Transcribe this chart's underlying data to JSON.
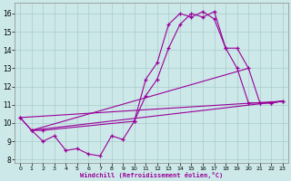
{
  "xlabel": "Windchill (Refroidissement éolien,°C)",
  "background_color": "#cce8e8",
  "grid_color": "#aacccc",
  "line_color": "#990099",
  "xlim": [
    -0.5,
    23.5
  ],
  "ylim": [
    7.8,
    16.6
  ],
  "xticks": [
    0,
    1,
    2,
    3,
    4,
    5,
    6,
    7,
    8,
    9,
    10,
    11,
    12,
    13,
    14,
    15,
    16,
    17,
    18,
    19,
    20,
    21,
    22,
    23
  ],
  "yticks": [
    8,
    9,
    10,
    11,
    12,
    13,
    14,
    15,
    16
  ],
  "line1_x": [
    0,
    1,
    2,
    3,
    4,
    5,
    6,
    7,
    8,
    9,
    10,
    11,
    12,
    13,
    14,
    15,
    16,
    17,
    18,
    19,
    20,
    21,
    22,
    23
  ],
  "line1_y": [
    10.3,
    9.6,
    9.0,
    9.3,
    8.5,
    8.6,
    8.3,
    8.2,
    9.3,
    9.1,
    10.1,
    12.4,
    13.3,
    15.4,
    16.0,
    15.8,
    16.1,
    15.7,
    14.1,
    13.0,
    11.1,
    11.1,
    11.1,
    11.2
  ],
  "line2_x": [
    0,
    1,
    2,
    10,
    11,
    12,
    13,
    14,
    15,
    16,
    17,
    18,
    19,
    20,
    21,
    22,
    23
  ],
  "line2_y": [
    10.3,
    9.6,
    9.6,
    10.1,
    11.5,
    12.4,
    14.1,
    15.4,
    16.0,
    15.8,
    16.1,
    14.1,
    14.1,
    13.0,
    11.1,
    11.1,
    11.2
  ],
  "fan_lines": [
    {
      "x": [
        1,
        20
      ],
      "y": [
        9.6,
        13.0
      ]
    },
    {
      "x": [
        1,
        23
      ],
      "y": [
        9.6,
        11.2
      ]
    },
    {
      "x": [
        0,
        23
      ],
      "y": [
        10.3,
        11.2
      ]
    }
  ]
}
